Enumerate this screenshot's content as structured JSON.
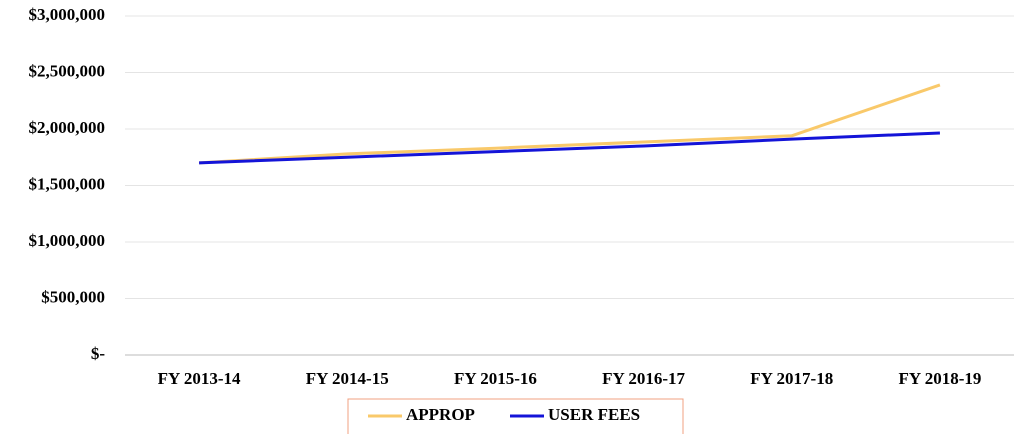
{
  "chart_data": {
    "type": "line",
    "categories": [
      "FY 2013-14",
      "FY 2014-15",
      "FY 2015-16",
      "FY 2016-17",
      "FY 2017-18",
      "FY 2018-19"
    ],
    "series": [
      {
        "name": "APPROP",
        "color": "#f9c96a",
        "values": [
          1700000,
          1780000,
          1830000,
          1885000,
          1940000,
          2390000
        ]
      },
      {
        "name": "USER FEES",
        "color": "#1414d8",
        "values": [
          1700000,
          1750000,
          1800000,
          1850000,
          1910000,
          1965000
        ]
      }
    ],
    "ylim": [
      0,
      3000000
    ],
    "yticks": [
      {
        "value": 0,
        "label": "$-"
      },
      {
        "value": 500000,
        "label": "$500,000"
      },
      {
        "value": 1000000,
        "label": "$1,000,000"
      },
      {
        "value": 1500000,
        "label": "$1,500,000"
      },
      {
        "value": 2000000,
        "label": "$2,000,000"
      },
      {
        "value": 2500000,
        "label": "$2,500,000"
      },
      {
        "value": 3000000,
        "label": "$3,000,000"
      }
    ],
    "grid": true,
    "legend": "bottom"
  }
}
